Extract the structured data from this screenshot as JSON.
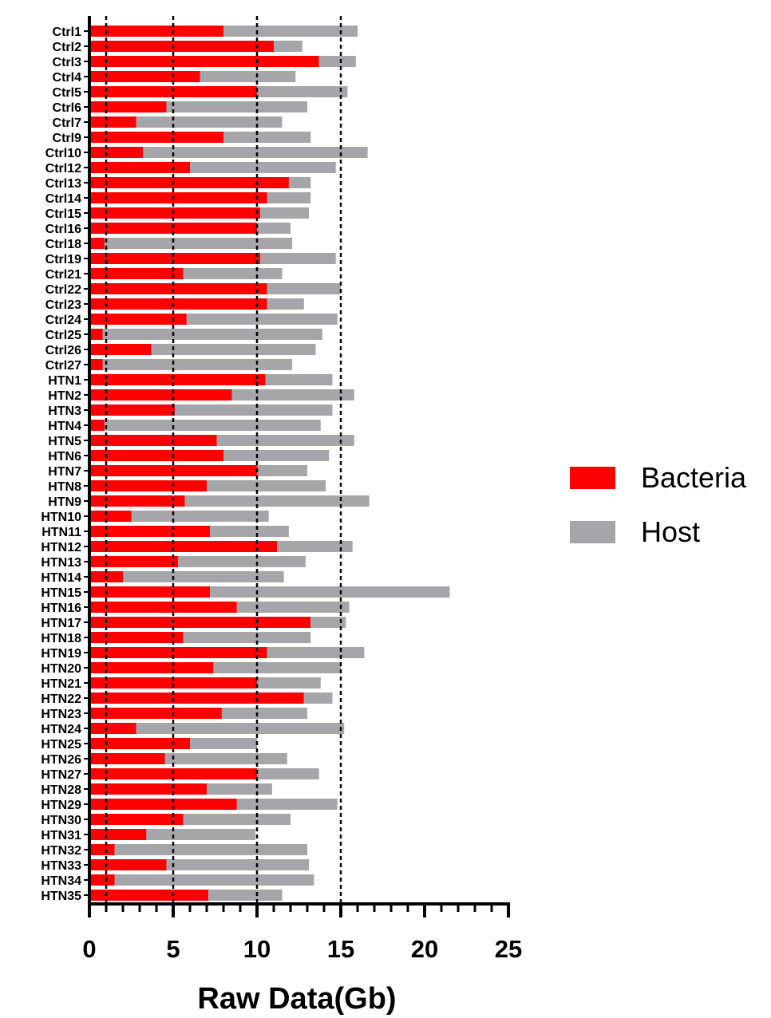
{
  "chart_data": {
    "type": "bar",
    "orientation": "horizontal",
    "stacked": true,
    "xlabel": "Raw Data(Gb)",
    "ylabel": "",
    "xlim": [
      0,
      25
    ],
    "xticks": [
      0,
      5,
      10,
      15,
      20,
      25
    ],
    "reference_lines_x": [
      1,
      5,
      10,
      15
    ],
    "legend_position": "right",
    "categories": [
      "Ctrl1",
      "Ctrl2",
      "Ctrl3",
      "Ctrl4",
      "Ctrl5",
      "Ctrl6",
      "Ctrl7",
      "Ctrl9",
      "Ctrl10",
      "Ctrl12",
      "Ctrl13",
      "Ctrl14",
      "Ctrl15",
      "Ctrl16",
      "Ctrl18",
      "Ctrl19",
      "Ctrl21",
      "Ctrl22",
      "Ctrl23",
      "Ctrl24",
      "Ctrl25",
      "Ctrl26",
      "Ctrl27",
      "HTN1",
      "HTN2",
      "HTN3",
      "HTN4",
      "HTN5",
      "HTN6",
      "HTN7",
      "HTN8",
      "HTN9",
      "HTN10",
      "HTN11",
      "HTN12",
      "HTN13",
      "HTN14",
      "HTN15",
      "HTN16",
      "HTN17",
      "HTN18",
      "HTN19",
      "HTN20",
      "HTN21",
      "HTN22",
      "HTN23",
      "HTN24",
      "HTN25",
      "HTN26",
      "HTN27",
      "HTN28",
      "HTN29",
      "HTN30",
      "HTN31",
      "HTN32",
      "HTN33",
      "HTN34",
      "HTN35"
    ],
    "series": [
      {
        "name": "Bacteria",
        "color": "#ff0000",
        "values": [
          8.0,
          11.0,
          13.7,
          6.6,
          10.0,
          4.6,
          2.8,
          8.0,
          3.2,
          6.0,
          11.9,
          10.6,
          10.2,
          10.0,
          0.9,
          10.2,
          5.6,
          10.6,
          10.6,
          5.8,
          0.8,
          3.7,
          0.8,
          10.5,
          8.5,
          5.1,
          0.9,
          7.6,
          8.0,
          10.0,
          7.0,
          5.7,
          2.5,
          7.2,
          11.2,
          5.3,
          2.0,
          7.2,
          8.8,
          13.2,
          5.6,
          10.6,
          7.4,
          10.0,
          12.8,
          7.9,
          2.8,
          6.0,
          4.5,
          10.0,
          7.0,
          8.8,
          5.6,
          3.4,
          1.5,
          4.6,
          1.5,
          7.1
        ]
      },
      {
        "name": "Host",
        "color": "#a6a6aa",
        "values": [
          8.0,
          1.7,
          2.2,
          5.7,
          5.4,
          8.4,
          8.7,
          5.2,
          13.4,
          8.7,
          1.3,
          2.6,
          2.9,
          2.0,
          11.2,
          4.5,
          5.9,
          4.4,
          2.2,
          9.0,
          13.1,
          9.8,
          11.3,
          4.0,
          7.3,
          9.4,
          12.9,
          8.2,
          6.3,
          3.0,
          7.1,
          11.0,
          8.2,
          4.7,
          4.5,
          7.6,
          9.6,
          14.3,
          6.7,
          2.1,
          7.6,
          5.8,
          7.6,
          3.8,
          1.7,
          5.1,
          12.4,
          4.0,
          7.3,
          3.7,
          3.9,
          6.0,
          6.4,
          6.5,
          11.5,
          8.5,
          11.9,
          4.4
        ]
      }
    ]
  }
}
